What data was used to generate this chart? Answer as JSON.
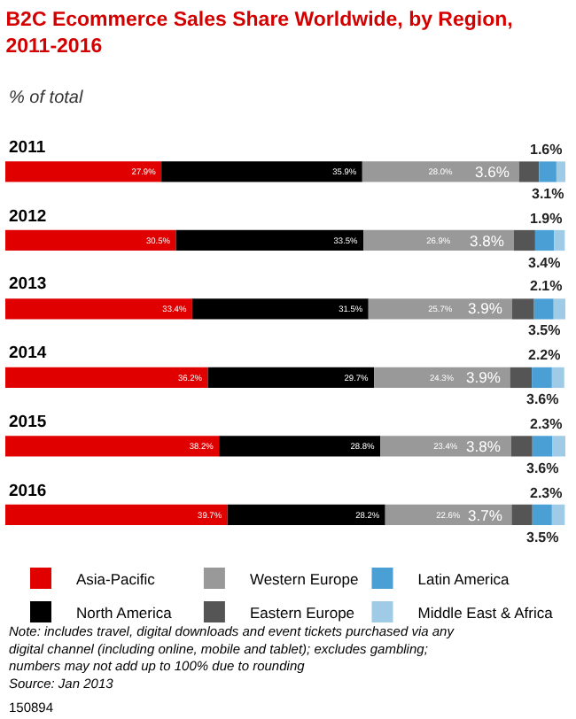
{
  "chart_data": {
    "type": "bar",
    "orientation": "horizontal",
    "stacked": true,
    "legend": "bottom",
    "title": "B2C Ecommerce Sales Share Worldwide, by Region, 2011-2016",
    "subtitle": "% of total",
    "categories": [
      "2011",
      "2012",
      "2013",
      "2014",
      "2015",
      "2016"
    ],
    "series": [
      {
        "name": "Asia-Pacific",
        "color": "#e00000",
        "values": [
          27.9,
          30.5,
          33.4,
          36.2,
          38.2,
          39.7
        ],
        "value_labels": [
          "27.9%",
          "30.5%",
          "33.4%",
          "36.2%",
          "38.2%",
          "39.7%"
        ]
      },
      {
        "name": "North America",
        "color": "#000000",
        "values": [
          35.9,
          33.5,
          31.5,
          29.7,
          28.8,
          28.2
        ],
        "value_labels": [
          "35.9%",
          "33.5%",
          "31.5%",
          "29.7%",
          "28.8%",
          "28.2%"
        ]
      },
      {
        "name": "Western Europe",
        "color": "#999999",
        "values": [
          28.0,
          26.9,
          25.7,
          24.3,
          23.4,
          22.6
        ],
        "value_labels": [
          "28.0%",
          "26.9%",
          "25.7%",
          "24.3%",
          "23.4%",
          "22.6%"
        ]
      },
      {
        "name": "Eastern Europe",
        "color": "#555555",
        "values": [
          3.6,
          3.8,
          3.9,
          3.9,
          3.8,
          3.7
        ],
        "value_labels": [
          "3.6%",
          "3.8%",
          "3.9%",
          "3.9%",
          "3.8%",
          "3.7%"
        ]
      },
      {
        "name": "Latin America",
        "color": "#4a9fd5",
        "values": [
          3.1,
          3.4,
          3.5,
          3.6,
          3.6,
          3.5
        ],
        "value_labels": [
          "3.1%",
          "3.4%",
          "3.5%",
          "3.6%",
          "3.6%",
          "3.5%"
        ]
      },
      {
        "name": "Middle East & Africa",
        "color": "#9fcbe6",
        "values": [
          1.6,
          1.9,
          2.1,
          2.2,
          2.3,
          2.3
        ],
        "value_labels": [
          "1.6%",
          "1.9%",
          "2.1%",
          "2.2%",
          "2.3%",
          "2.3%"
        ]
      }
    ],
    "annotations": [
      "Note: includes travel, digital downloads and event tickets purchased via any digital channel (including online, mobile and tablet); excludes gambling; numbers may not add up to 100% due to rounding",
      "Source: Jan 2013",
      "150894"
    ]
  }
}
